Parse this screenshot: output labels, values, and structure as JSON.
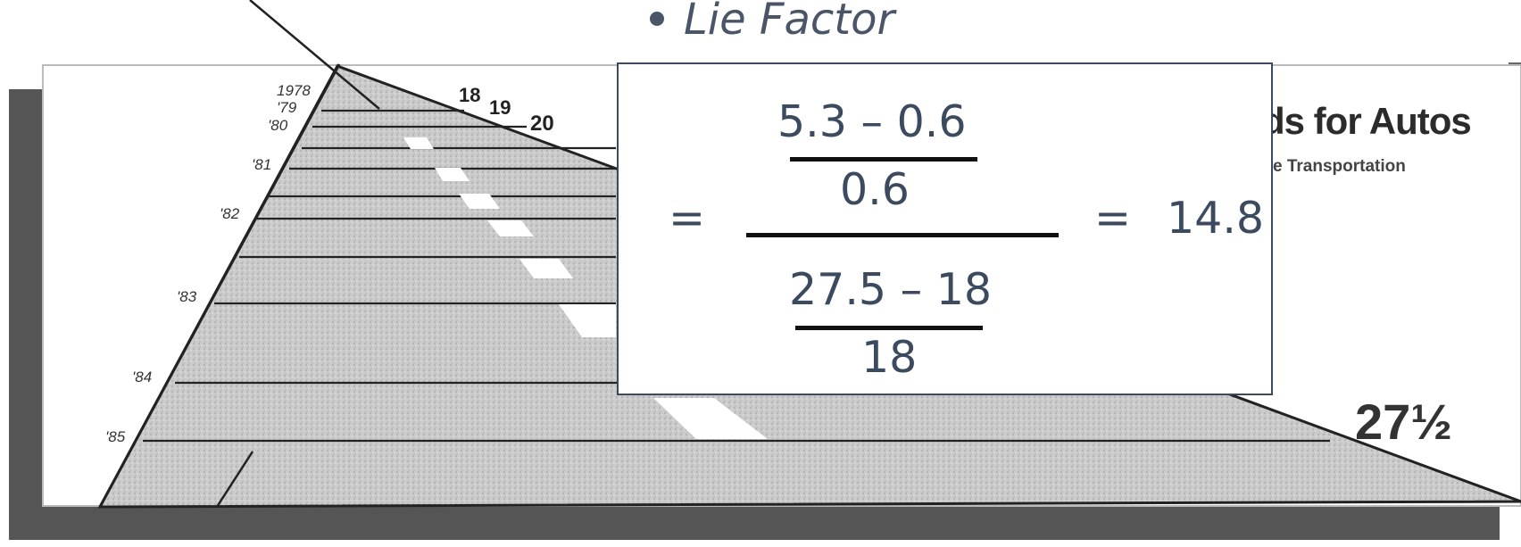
{
  "bullet": {
    "label": "Lie Factor"
  },
  "formula": {
    "equals_left": "=",
    "top_numerator": "5.3 – 0.6",
    "top_denominator": "0.6",
    "bottom_numerator": "27.5 – 18",
    "bottom_denominator": "18",
    "equals_right": "=",
    "result": "14.8"
  },
  "chart": {
    "title_visible": "ds for Autos",
    "subtitle_visible": "e Transportation",
    "years": [
      "1978",
      "'79",
      "'80",
      "'81",
      "'82",
      "'83",
      "'84",
      "'85"
    ],
    "top_values": [
      "18",
      "19",
      "20"
    ],
    "final_value": "27½"
  },
  "colors": {
    "text_primary": "#3b4a5e",
    "road_fill": "#c9c9c9",
    "frame_shadow": "#555555"
  }
}
